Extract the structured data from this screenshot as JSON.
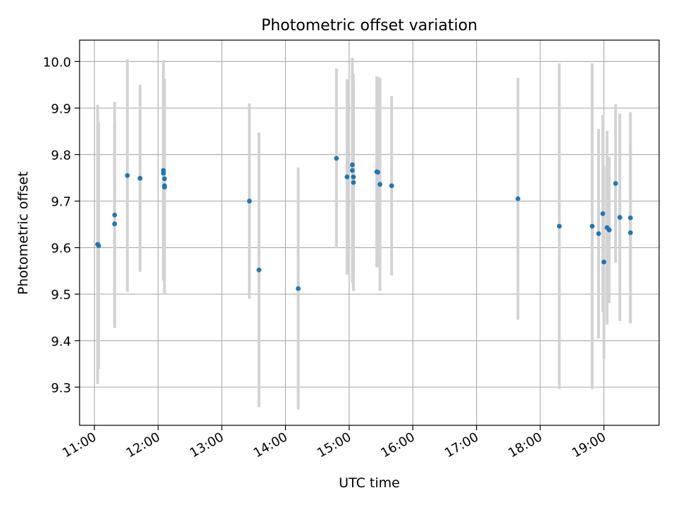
{
  "chart_data": {
    "type": "scatter",
    "title": "Photometric offset variation",
    "xlabel": "UTC time",
    "ylabel": "Photometric offset",
    "x_axis_type": "time",
    "xlim": [
      "10:46",
      "19:52"
    ],
    "ylim": [
      9.218,
      10.046
    ],
    "x_ticks": [
      "11:00",
      "12:00",
      "13:00",
      "14:00",
      "15:00",
      "16:00",
      "17:00",
      "18:00",
      "19:00"
    ],
    "y_ticks": [
      9.3,
      9.4,
      9.5,
      9.6,
      9.7,
      9.8,
      9.9,
      10.0
    ],
    "y_tick_labels": [
      "9.3",
      "9.4",
      "9.5",
      "9.6",
      "9.7",
      "9.8",
      "9.9",
      "10.0"
    ],
    "grid": true,
    "x_tick_rotation": "30deg",
    "colors": {
      "point": "#1f77b4",
      "errorbar": "#d3d3d3",
      "grid": "#b0b0b0"
    },
    "points": [
      {
        "x": "11:03",
        "y": 9.607,
        "yerr": 0.3
      },
      {
        "x": "11:04",
        "y": 9.604,
        "yerr": 0.265
      },
      {
        "x": "11:19",
        "y": 9.67,
        "yerr": 0.243
      },
      {
        "x": "11:19",
        "y": 9.651,
        "yerr": 0.215
      },
      {
        "x": "11:31",
        "y": 9.755,
        "yerr": 0.25
      },
      {
        "x": "11:43",
        "y": 9.749,
        "yerr": 0.201
      },
      {
        "x": "12:05",
        "y": 9.766,
        "yerr": 0.237
      },
      {
        "x": "12:05",
        "y": 9.76,
        "yerr": 0.23
      },
      {
        "x": "12:06",
        "y": 9.748,
        "yerr": 0.2
      },
      {
        "x": "12:06",
        "y": 9.733,
        "yerr": 0.23
      },
      {
        "x": "12:06",
        "y": 9.73,
        "yerr": 0.23
      },
      {
        "x": "13:26",
        "y": 9.7,
        "yerr": 0.21
      },
      {
        "x": "13:35",
        "y": 9.552,
        "yerr": 0.295
      },
      {
        "x": "14:12",
        "y": 9.512,
        "yerr": 0.26
      },
      {
        "x": "14:48",
        "y": 9.792,
        "yerr": 0.193
      },
      {
        "x": "14:58",
        "y": 9.752,
        "yerr": 0.21
      },
      {
        "x": "15:03",
        "y": 9.778,
        "yerr": 0.23
      },
      {
        "x": "15:03",
        "y": 9.766,
        "yerr": 0.241
      },
      {
        "x": "15:04",
        "y": 9.752,
        "yerr": 0.204
      },
      {
        "x": "15:04",
        "y": 9.74,
        "yerr": 0.233
      },
      {
        "x": "15:26",
        "y": 9.763,
        "yerr": 0.205
      },
      {
        "x": "15:27",
        "y": 9.762,
        "yerr": 0.205
      },
      {
        "x": "15:29",
        "y": 9.736,
        "yerr": 0.229
      },
      {
        "x": "15:40",
        "y": 9.733,
        "yerr": 0.193
      },
      {
        "x": "17:39",
        "y": 9.705,
        "yerr": 0.26
      },
      {
        "x": "18:18",
        "y": 9.646,
        "yerr": 0.35
      },
      {
        "x": "18:49",
        "y": 9.646,
        "yerr": 0.35
      },
      {
        "x": "18:55",
        "y": 9.63,
        "yerr": 0.225
      },
      {
        "x": "18:59",
        "y": 9.673,
        "yerr": 0.212
      },
      {
        "x": "19:00",
        "y": 9.569,
        "yerr": 0.208
      },
      {
        "x": "19:03",
        "y": 9.643,
        "yerr": 0.208
      },
      {
        "x": "19:05",
        "y": 9.638,
        "yerr": 0.157
      },
      {
        "x": "19:11",
        "y": 9.738,
        "yerr": 0.17
      },
      {
        "x": "19:15",
        "y": 9.665,
        "yerr": 0.223
      },
      {
        "x": "19:25",
        "y": 9.664,
        "yerr": 0.227
      },
      {
        "x": "19:25",
        "y": 9.632,
        "yerr": 0.193
      }
    ]
  }
}
